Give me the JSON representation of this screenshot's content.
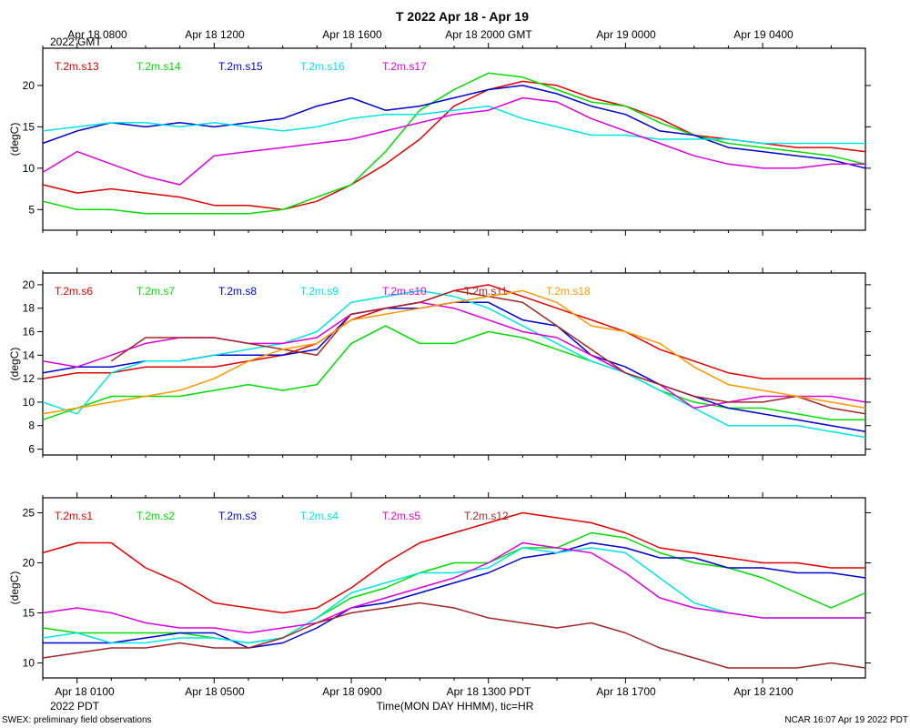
{
  "title": "T 2022 Apr 18 - Apr 19",
  "top_axis": {
    "ticks": [
      "Apr 18 0800",
      "Apr 18 1200",
      "Apr 18 1600",
      "Apr 18 2000 GMT",
      "Apr 19 0000",
      "Apr 19 0400"
    ],
    "year_note": "2022 GMT"
  },
  "bottom_axis": {
    "ticks": [
      "Apr 18 0100",
      "Apr 18 0500",
      "Apr 18 0900",
      "Apr 18 1300 PDT",
      "Apr 18 1700",
      "Apr 18 2100"
    ],
    "year_note": "2022 PDT",
    "label": "Time(MON DAY HHMM), tic=HR"
  },
  "footer_left": "SWEX: preliminary field observations",
  "footer_right": "NCAR 16:07 Apr 19 2022 PDT",
  "chart_data": [
    {
      "type": "line",
      "ylabel": "(degC)",
      "ylim": [
        2.5,
        24.5
      ],
      "yticks": [
        5,
        10,
        15,
        20
      ],
      "x_hours_range": [
        0,
        24
      ],
      "series": [
        {
          "name": "T.2m.s13",
          "color": "#e00000",
          "x": [
            0,
            1,
            2,
            3,
            4,
            5,
            6,
            7,
            8,
            9,
            10,
            11,
            12,
            13,
            14,
            15,
            16,
            17,
            18,
            19,
            20,
            21,
            22,
            23,
            24
          ],
          "values": [
            8.0,
            7.0,
            7.5,
            7.0,
            6.5,
            5.5,
            5.5,
            5.0,
            6.0,
            8.0,
            10.5,
            13.5,
            17.5,
            19.5,
            20.5,
            20.0,
            18.5,
            17.5,
            16.0,
            14.0,
            13.5,
            13.0,
            12.5,
            12.5,
            12.0
          ]
        },
        {
          "name": "T.2m.s14",
          "color": "#00dd00",
          "x": [
            0,
            1,
            2,
            3,
            4,
            5,
            6,
            7,
            8,
            9,
            10,
            11,
            12,
            13,
            14,
            15,
            16,
            17,
            18,
            19,
            20,
            21,
            22,
            23,
            24
          ],
          "values": [
            6.0,
            5.0,
            5.0,
            4.5,
            4.5,
            4.5,
            4.5,
            5.0,
            6.5,
            8.0,
            12.0,
            17.0,
            19.5,
            21.5,
            21.0,
            19.5,
            18.0,
            17.5,
            15.5,
            14.0,
            13.0,
            12.5,
            12.0,
            11.5,
            10.5
          ]
        },
        {
          "name": "T.2m.s15",
          "color": "#0000cc",
          "x": [
            0,
            1,
            2,
            3,
            4,
            5,
            6,
            7,
            8,
            9,
            10,
            11,
            12,
            13,
            14,
            15,
            16,
            17,
            18,
            19,
            20,
            21,
            22,
            23,
            24
          ],
          "values": [
            13.0,
            14.5,
            15.5,
            15.0,
            15.5,
            15.0,
            15.5,
            16.0,
            17.5,
            18.5,
            17.0,
            17.5,
            18.5,
            19.5,
            20.0,
            19.0,
            17.5,
            16.5,
            14.5,
            14.0,
            12.5,
            12.0,
            11.5,
            11.0,
            10.0
          ]
        },
        {
          "name": "T.2m.s16",
          "color": "#00e5e5",
          "x": [
            0,
            1,
            2,
            3,
            4,
            5,
            6,
            7,
            8,
            9,
            10,
            11,
            12,
            13,
            14,
            15,
            16,
            17,
            18,
            19,
            20,
            21,
            22,
            23,
            24
          ],
          "values": [
            14.5,
            15.0,
            15.5,
            15.5,
            15.0,
            15.5,
            15.0,
            14.5,
            15.0,
            16.0,
            16.5,
            16.5,
            17.0,
            17.5,
            16.0,
            15.0,
            14.0,
            14.0,
            13.5,
            13.5,
            13.5,
            13.0,
            13.0,
            13.0,
            13.0
          ]
        },
        {
          "name": "T.2m.s17",
          "color": "#dd00dd",
          "x": [
            0,
            1,
            2,
            3,
            4,
            5,
            6,
            7,
            8,
            9,
            10,
            11,
            12,
            13,
            14,
            15,
            16,
            17,
            18,
            19,
            20,
            21,
            22,
            23,
            24
          ],
          "values": [
            9.5,
            12.0,
            10.5,
            9.0,
            8.0,
            11.5,
            12.0,
            12.5,
            13.0,
            13.5,
            14.5,
            15.5,
            16.5,
            17.0,
            18.5,
            18.0,
            16.0,
            14.5,
            13.0,
            11.5,
            10.5,
            10.0,
            10.0,
            10.5,
            10.5
          ]
        }
      ]
    },
    {
      "type": "line",
      "ylabel": "(degC)",
      "ylim": [
        5.5,
        21
      ],
      "yticks": [
        6,
        8,
        10,
        12,
        14,
        16,
        18,
        20
      ],
      "x_hours_range": [
        0,
        24
      ],
      "series": [
        {
          "name": "T.2m.s6",
          "color": "#e00000",
          "x": [
            0,
            1,
            2,
            3,
            4,
            5,
            6,
            7,
            8,
            9,
            10,
            11,
            12,
            13,
            14,
            15,
            16,
            17,
            18,
            19,
            20,
            21,
            22,
            23,
            24
          ],
          "values": [
            12.0,
            12.5,
            12.5,
            13.0,
            13.0,
            13.0,
            13.5,
            14.0,
            15.0,
            17.0,
            18.0,
            18.5,
            19.5,
            20.0,
            19.0,
            18.0,
            17.0,
            16.0,
            14.5,
            13.5,
            12.5,
            12.0,
            12.0,
            12.0,
            12.0
          ]
        },
        {
          "name": "T.2m.s7",
          "color": "#00dd00",
          "x": [
            0,
            1,
            2,
            3,
            4,
            5,
            6,
            7,
            8,
            9,
            10,
            11,
            12,
            13,
            14,
            15,
            16,
            17,
            18,
            19,
            20,
            21,
            22,
            23,
            24
          ],
          "values": [
            8.5,
            9.5,
            10.5,
            10.5,
            10.5,
            11.0,
            11.5,
            11.0,
            11.5,
            15.0,
            16.5,
            15.0,
            15.0,
            16.0,
            15.5,
            14.5,
            13.5,
            12.5,
            11.0,
            10.0,
            9.5,
            9.5,
            9.0,
            8.5,
            8.5
          ]
        },
        {
          "name": "T.2m.s8",
          "color": "#0000cc",
          "x": [
            0,
            1,
            2,
            3,
            4,
            5,
            6,
            7,
            8,
            9,
            10,
            11,
            12,
            13,
            14,
            15,
            16,
            17,
            18,
            19,
            20,
            21,
            22,
            23,
            24
          ],
          "values": [
            12.5,
            13.0,
            13.0,
            13.5,
            13.5,
            14.0,
            14.0,
            14.0,
            14.5,
            17.5,
            18.0,
            18.0,
            18.5,
            18.5,
            17.0,
            16.5,
            14.0,
            13.0,
            11.5,
            10.5,
            9.5,
            9.0,
            8.5,
            8.0,
            7.5
          ]
        },
        {
          "name": "T.2m.s9",
          "color": "#00e5e5",
          "x": [
            0,
            1,
            2,
            3,
            4,
            5,
            6,
            7,
            8,
            9,
            10,
            11,
            12,
            13,
            14,
            15,
            16,
            17,
            18,
            19,
            20,
            21,
            22,
            23,
            24
          ],
          "values": [
            10.0,
            9.0,
            12.5,
            13.5,
            13.5,
            14.0,
            14.5,
            15.0,
            16.0,
            18.5,
            19.0,
            19.5,
            19.0,
            18.0,
            16.5,
            15.0,
            13.5,
            12.5,
            11.0,
            9.5,
            8.0,
            8.0,
            8.0,
            7.5,
            7.0
          ]
        },
        {
          "name": "T.2m.s10",
          "color": "#dd00dd",
          "x": [
            0,
            1,
            2,
            3,
            4,
            5,
            6,
            7,
            8,
            9,
            10,
            11,
            12,
            13,
            14,
            15,
            16,
            17,
            18,
            19,
            20,
            21,
            22,
            23,
            24
          ],
          "values": [
            13.5,
            13.0,
            14.0,
            15.0,
            15.5,
            15.5,
            15.0,
            15.0,
            15.5,
            17.5,
            18.0,
            18.5,
            18.0,
            17.0,
            16.0,
            15.5,
            14.0,
            12.5,
            11.5,
            9.5,
            10.0,
            10.5,
            10.5,
            10.5,
            10.0
          ]
        },
        {
          "name": "T.2m.s11",
          "color": "#a02828",
          "x": [
            2,
            3,
            4,
            5,
            6,
            7,
            8,
            9,
            10,
            11,
            12,
            13,
            14,
            15,
            16,
            17,
            18,
            19,
            20,
            21,
            22,
            23,
            24
          ],
          "values": [
            13.5,
            15.5,
            15.5,
            15.5,
            15.0,
            14.5,
            14.0,
            17.5,
            18.0,
            18.5,
            19.5,
            19.0,
            18.5,
            16.5,
            14.5,
            12.5,
            11.5,
            10.5,
            10.0,
            10.0,
            10.5,
            9.5,
            9.0
          ]
        },
        {
          "name": "T.2m.s18",
          "color": "#ff9900",
          "x": [
            0,
            1,
            2,
            3,
            4,
            5,
            6,
            7,
            8,
            9,
            10,
            11,
            12,
            13,
            14,
            15,
            16,
            17,
            18,
            19,
            20,
            21,
            22,
            23,
            24
          ],
          "values": [
            9.0,
            9.5,
            10.0,
            10.5,
            11.0,
            12.0,
            13.5,
            14.5,
            15.0,
            17.0,
            17.5,
            18.0,
            18.5,
            19.0,
            19.5,
            18.5,
            16.5,
            16.0,
            15.0,
            13.0,
            11.5,
            11.0,
            10.5,
            10.0,
            9.5
          ]
        }
      ]
    },
    {
      "type": "line",
      "ylabel": "(degC)",
      "ylim": [
        8.5,
        26.5
      ],
      "yticks": [
        10,
        15,
        20,
        25
      ],
      "x_hours_range": [
        0,
        24
      ],
      "series": [
        {
          "name": "T.2m.s1",
          "color": "#e00000",
          "x": [
            0,
            1,
            2,
            3,
            4,
            5,
            6,
            7,
            8,
            9,
            10,
            11,
            12,
            13,
            14,
            15,
            16,
            17,
            18,
            19,
            20,
            21,
            22,
            23,
            24
          ],
          "values": [
            21.0,
            22.0,
            22.0,
            19.5,
            18.0,
            16.0,
            15.5,
            15.0,
            15.5,
            17.5,
            20.0,
            22.0,
            23.0,
            24.0,
            25.0,
            24.5,
            24.0,
            23.0,
            21.5,
            21.0,
            20.5,
            20.0,
            20.0,
            19.5,
            19.5
          ]
        },
        {
          "name": "T.2m.s2",
          "color": "#00dd00",
          "x": [
            0,
            1,
            2,
            3,
            4,
            5,
            6,
            7,
            8,
            9,
            10,
            11,
            12,
            13,
            14,
            15,
            16,
            17,
            18,
            19,
            20,
            21,
            22,
            23,
            24
          ],
          "values": [
            13.5,
            13.0,
            13.0,
            13.0,
            13.0,
            12.5,
            12.0,
            12.5,
            14.5,
            16.5,
            17.5,
            19.0,
            20.0,
            20.0,
            21.5,
            21.5,
            23.0,
            22.5,
            21.0,
            20.0,
            19.5,
            18.5,
            17.0,
            15.5,
            17.0
          ]
        },
        {
          "name": "T.2m.s3",
          "color": "#0000cc",
          "x": [
            0,
            1,
            2,
            3,
            4,
            5,
            6,
            7,
            8,
            9,
            10,
            11,
            12,
            13,
            14,
            15,
            16,
            17,
            18,
            19,
            20,
            21,
            22,
            23,
            24
          ],
          "values": [
            12.0,
            12.0,
            12.0,
            12.5,
            13.0,
            13.0,
            11.5,
            12.0,
            13.5,
            15.5,
            16.0,
            17.0,
            18.0,
            19.0,
            20.5,
            21.0,
            22.0,
            21.5,
            20.5,
            20.5,
            19.5,
            19.5,
            19.0,
            19.0,
            18.5
          ]
        },
        {
          "name": "T.2m.s4",
          "color": "#00e5e5",
          "x": [
            0,
            1,
            2,
            3,
            4,
            5,
            6,
            7,
            8,
            9,
            10,
            11,
            12,
            13,
            14,
            15,
            16,
            17,
            18,
            19,
            20,
            21,
            22,
            23,
            24
          ],
          "values": [
            12.5,
            13.0,
            12.0,
            12.0,
            12.5,
            12.5,
            12.0,
            12.5,
            14.5,
            17.0,
            18.0,
            19.0,
            19.0,
            19.5,
            21.5,
            21.0,
            21.5,
            21.0,
            18.5,
            16.0,
            15.0,
            14.5,
            14.5,
            14.5,
            14.5
          ]
        },
        {
          "name": "T.2m.s5",
          "color": "#dd00dd",
          "x": [
            0,
            1,
            2,
            3,
            4,
            5,
            6,
            7,
            8,
            9,
            10,
            11,
            12,
            13,
            14,
            15,
            16,
            17,
            18,
            19,
            20,
            21,
            22,
            23,
            24
          ],
          "values": [
            15.0,
            15.5,
            15.0,
            14.0,
            13.5,
            13.5,
            13.0,
            13.5,
            14.0,
            15.5,
            16.5,
            17.5,
            18.5,
            20.0,
            22.0,
            21.5,
            21.0,
            19.0,
            16.5,
            15.5,
            15.0,
            14.5,
            14.5,
            14.5,
            14.5
          ]
        },
        {
          "name": "T.2m.s12",
          "color": "#a02828",
          "x": [
            0,
            1,
            2,
            3,
            4,
            5,
            6,
            7,
            8,
            9,
            10,
            11,
            12,
            13,
            14,
            15,
            16,
            17,
            18,
            19,
            20,
            21,
            22,
            23,
            24
          ],
          "values": [
            10.5,
            11.0,
            11.5,
            11.5,
            12.0,
            11.5,
            11.5,
            12.5,
            14.0,
            15.0,
            15.5,
            16.0,
            15.5,
            14.5,
            14.0,
            13.5,
            14.0,
            13.0,
            11.5,
            10.5,
            9.5,
            9.5,
            9.5,
            10.0,
            9.5
          ]
        }
      ]
    }
  ]
}
